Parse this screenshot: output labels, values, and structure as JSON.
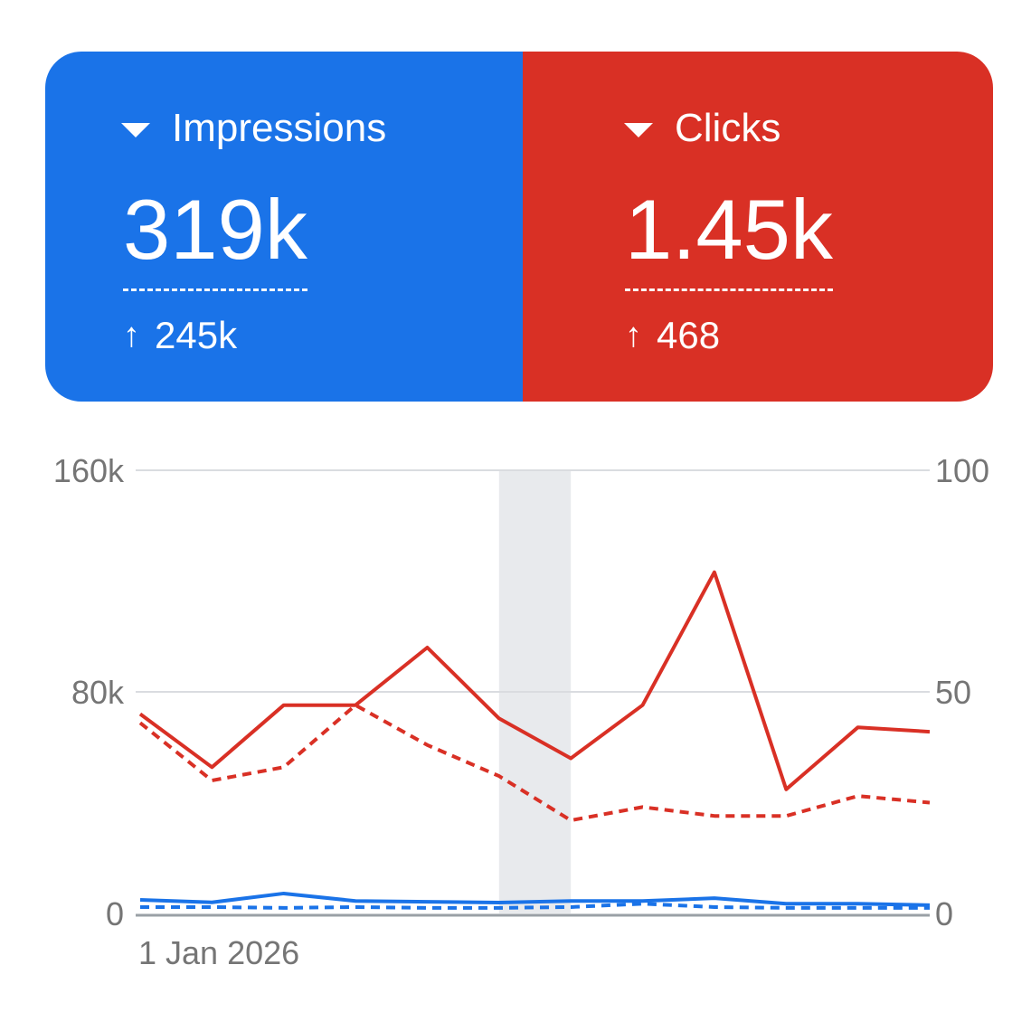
{
  "metrics": [
    {
      "label": "Impressions",
      "value": "319k",
      "delta": "245k",
      "color": "#1a73e8"
    },
    {
      "label": "Clicks",
      "value": "1.45k",
      "delta": "468",
      "color": "#d93025"
    }
  ],
  "chart_data": {
    "type": "line",
    "x_start_label": "1 Jan 2026",
    "left_axis": {
      "ticks": [
        "0",
        "80k",
        "160k"
      ],
      "range": [
        0,
        160000
      ]
    },
    "right_axis": {
      "ticks": [
        "0",
        "50",
        "100"
      ],
      "range": [
        0,
        100
      ]
    },
    "highlight_index": 5.5,
    "series": [
      {
        "name": "Clicks",
        "axis": "right",
        "style": "solid",
        "color": "#d93025",
        "values": [
          45,
          33,
          47,
          47,
          60,
          44,
          35,
          47,
          77,
          28,
          42,
          41
        ]
      },
      {
        "name": "Clicks (previous)",
        "axis": "right",
        "style": "dashed",
        "color": "#d93025",
        "values": [
          43,
          30,
          33,
          47,
          38,
          31,
          21,
          24,
          22,
          22,
          26.5,
          25
        ]
      },
      {
        "name": "Impressions",
        "axis": "left",
        "style": "solid",
        "color": "#1a73e8",
        "values": [
          4900,
          4000,
          7200,
          4500,
          4200,
          3900,
          4500,
          4500,
          5500,
          3500,
          3500,
          3000
        ]
      },
      {
        "name": "Impressions (previous)",
        "axis": "left",
        "style": "dashed",
        "color": "#1a73e8",
        "values": [
          2300,
          2300,
          2000,
          2300,
          2000,
          2000,
          2300,
          3500,
          2300,
          2000,
          2000,
          2000
        ]
      }
    ]
  }
}
